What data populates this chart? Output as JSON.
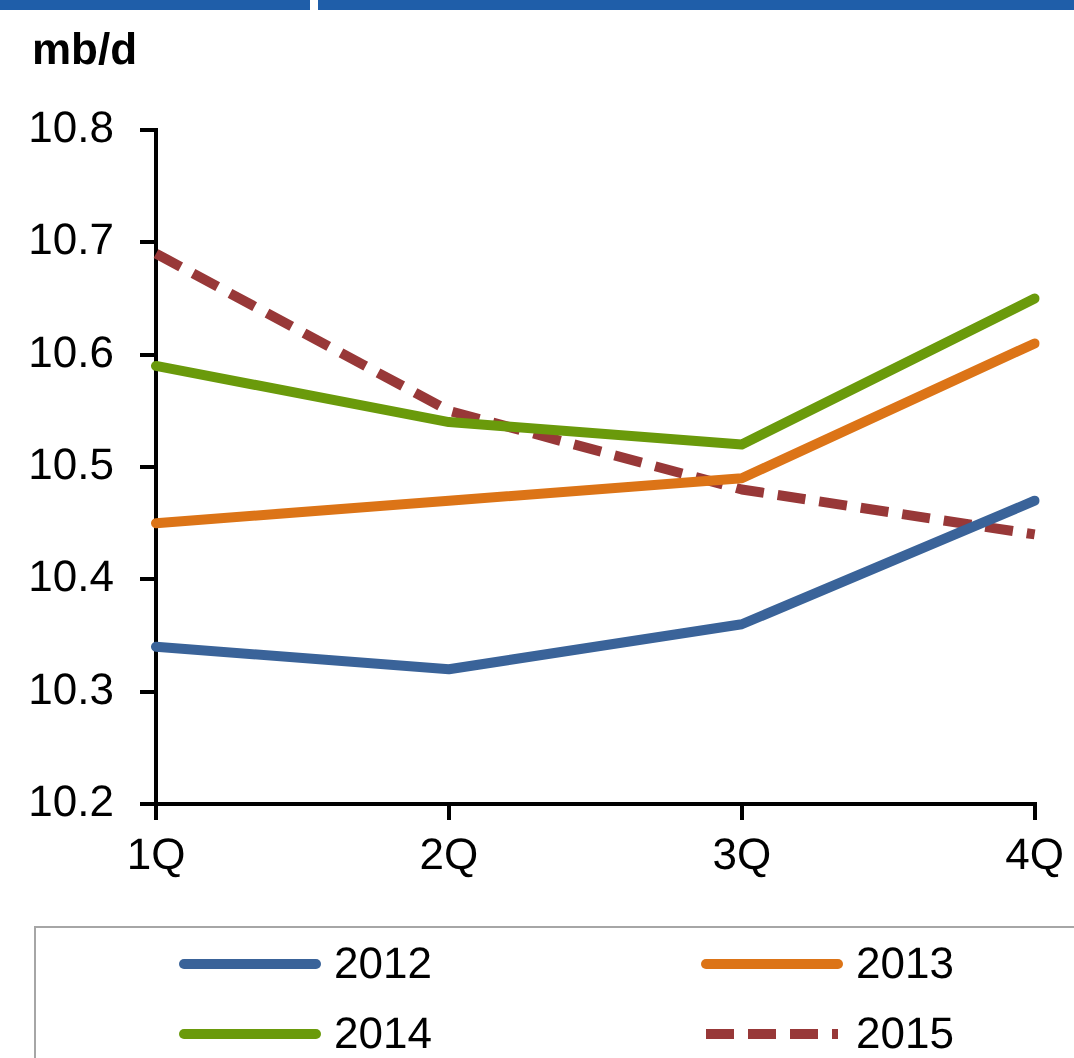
{
  "chart_data": {
    "type": "line",
    "ylabel": "mb/d",
    "categories": [
      "1Q",
      "2Q",
      "3Q",
      "4Q"
    ],
    "series": [
      {
        "name": "2012",
        "color": "#3a6399",
        "values": [
          10.34,
          10.32,
          10.36,
          10.47
        ]
      },
      {
        "name": "2013",
        "color": "#dc7417",
        "values": [
          10.45,
          10.47,
          10.49,
          10.61
        ]
      },
      {
        "name": "2014",
        "color": "#6a9a0b",
        "values": [
          10.59,
          10.54,
          10.52,
          10.65
        ]
      },
      {
        "name": "2015",
        "color": "#983838",
        "values": [
          10.69,
          10.55,
          10.48,
          10.44
        ],
        "line_style": "dashed"
      }
    ],
    "ylim": [
      10.2,
      10.8
    ],
    "yticks": [
      10.2,
      10.3,
      10.4,
      10.5,
      10.6,
      10.7,
      10.8
    ],
    "grid": false,
    "legend": "bottom",
    "marker": "none",
    "line_style": "solid"
  }
}
